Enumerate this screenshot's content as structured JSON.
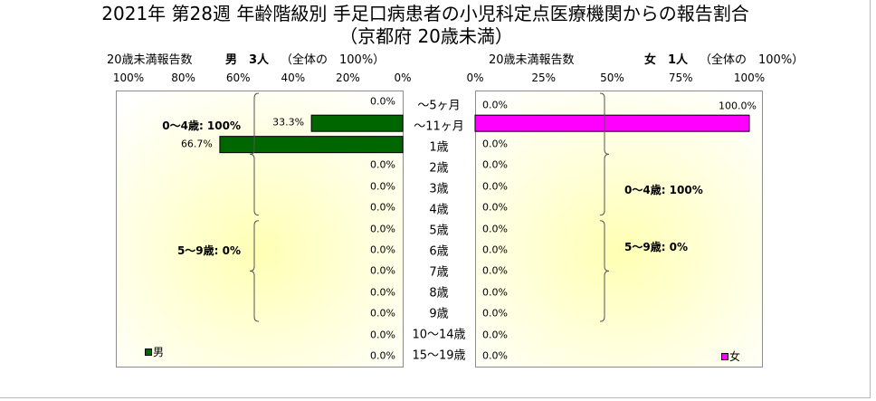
{
  "chart_data": {
    "type": "bar",
    "orientation": "horizontal",
    "title": "2021年 第28週 年齢階級別 手足口病患者の小児科定点医療機関からの報告割合",
    "subtitle": "（京都府 20歳未満）",
    "grid": false,
    "categories": [
      "～5ヶ月",
      "～11ヶ月",
      "1歳",
      "2歳",
      "3歳",
      "4歳",
      "5歳",
      "6歳",
      "7歳",
      "8歳",
      "9歳",
      "10～14歳",
      "15～19歳"
    ],
    "series": [
      {
        "name": "男",
        "color": "#006600",
        "panel_header": {
          "report_label": "20歳未満報告数",
          "count_label": "男　3人",
          "share_label": "（全体の　100%）"
        },
        "xlim": [
          0,
          100
        ],
        "x_reversed": true,
        "x_ticks": [
          "100%",
          "80%",
          "60%",
          "40%",
          "20%",
          "0%"
        ],
        "values": [
          0,
          33.3,
          66.7,
          0,
          0,
          0,
          0,
          0,
          0,
          0,
          0,
          0,
          0
        ],
        "data_labels": [
          "0.0%",
          "33.3%",
          "66.7%",
          "0.0%",
          "0.0%",
          "0.0%",
          "0.0%",
          "0.0%",
          "0.0%",
          "0.0%",
          "0.0%",
          "0.0%",
          "0.0%"
        ],
        "group_annotations": [
          {
            "text": "0～4歳: 100%",
            "from": "～5ヶ月",
            "to": "4歳"
          },
          {
            "text": "5～9歳: 0%",
            "from": "5歳",
            "to": "9歳"
          }
        ],
        "legend_position": "bottom-left"
      },
      {
        "name": "女",
        "color": "#ff00ff",
        "panel_header": {
          "report_label": "20歳未満報告数",
          "count_label": "女　1人",
          "share_label": "（全体の　100%）"
        },
        "xlim": [
          0,
          100
        ],
        "x_reversed": false,
        "x_ticks": [
          "0%",
          "25%",
          "50%",
          "75%",
          "100%"
        ],
        "values": [
          0,
          100,
          0,
          0,
          0,
          0,
          0,
          0,
          0,
          0,
          0,
          0,
          0
        ],
        "data_labels": [
          "0.0%",
          "100.0%",
          "0.0%",
          "0.0%",
          "0.0%",
          "0.0%",
          "0.0%",
          "0.0%",
          "0.0%",
          "0.0%",
          "0.0%",
          "0.0%",
          "0.0%"
        ],
        "group_annotations": [
          {
            "text": "0～4歳: 100%",
            "from": "～5ヶ月",
            "to": "4歳"
          },
          {
            "text": "5～9歳: 0%",
            "from": "5歳",
            "to": "9歳"
          }
        ],
        "legend_position": "bottom-right"
      }
    ]
  }
}
